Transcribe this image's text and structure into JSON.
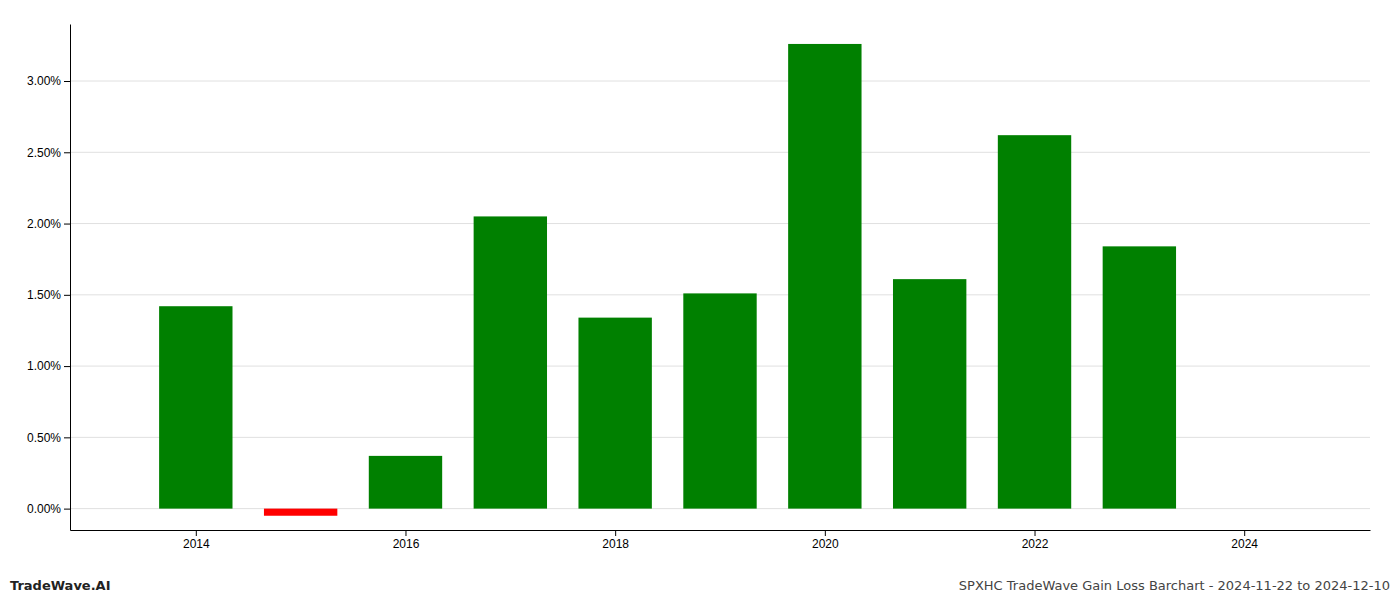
{
  "chart_data": {
    "type": "bar",
    "title": "SPXHC TradeWave Gain Loss Barchart - 2024-11-22 to 2024-12-10",
    "annotations": [
      "TradeWave.AI"
    ],
    "x": [
      2014,
      2015,
      2016,
      2017,
      2018,
      2019,
      2020,
      2021,
      2022,
      2023
    ],
    "values": [
      0.0142,
      -0.0005,
      0.0037,
      0.0205,
      0.0134,
      0.0151,
      0.0326,
      0.0161,
      0.0262,
      0.0184
    ],
    "colors": [
      "#008000",
      "#ff0000",
      "#008000",
      "#008000",
      "#008000",
      "#008000",
      "#008000",
      "#008000",
      "#008000",
      "#008000"
    ],
    "xlim": [
      2012.8,
      2025.2
    ],
    "xticks": [
      2014,
      2016,
      2018,
      2020,
      2022,
      2024
    ],
    "ylim": [
      -0.0015,
      0.034
    ],
    "yticks": [
      {
        "value": 0,
        "label": "0.00%"
      },
      {
        "value": 0.005,
        "label": "0.50%"
      },
      {
        "value": 0.01,
        "label": "1.00%"
      },
      {
        "value": 0.015,
        "label": "1.50%"
      },
      {
        "value": 0.02,
        "label": "2.00%"
      },
      {
        "value": 0.025,
        "label": "2.50%"
      },
      {
        "value": 0.03,
        "label": "3.00%"
      }
    ],
    "grid": true
  }
}
